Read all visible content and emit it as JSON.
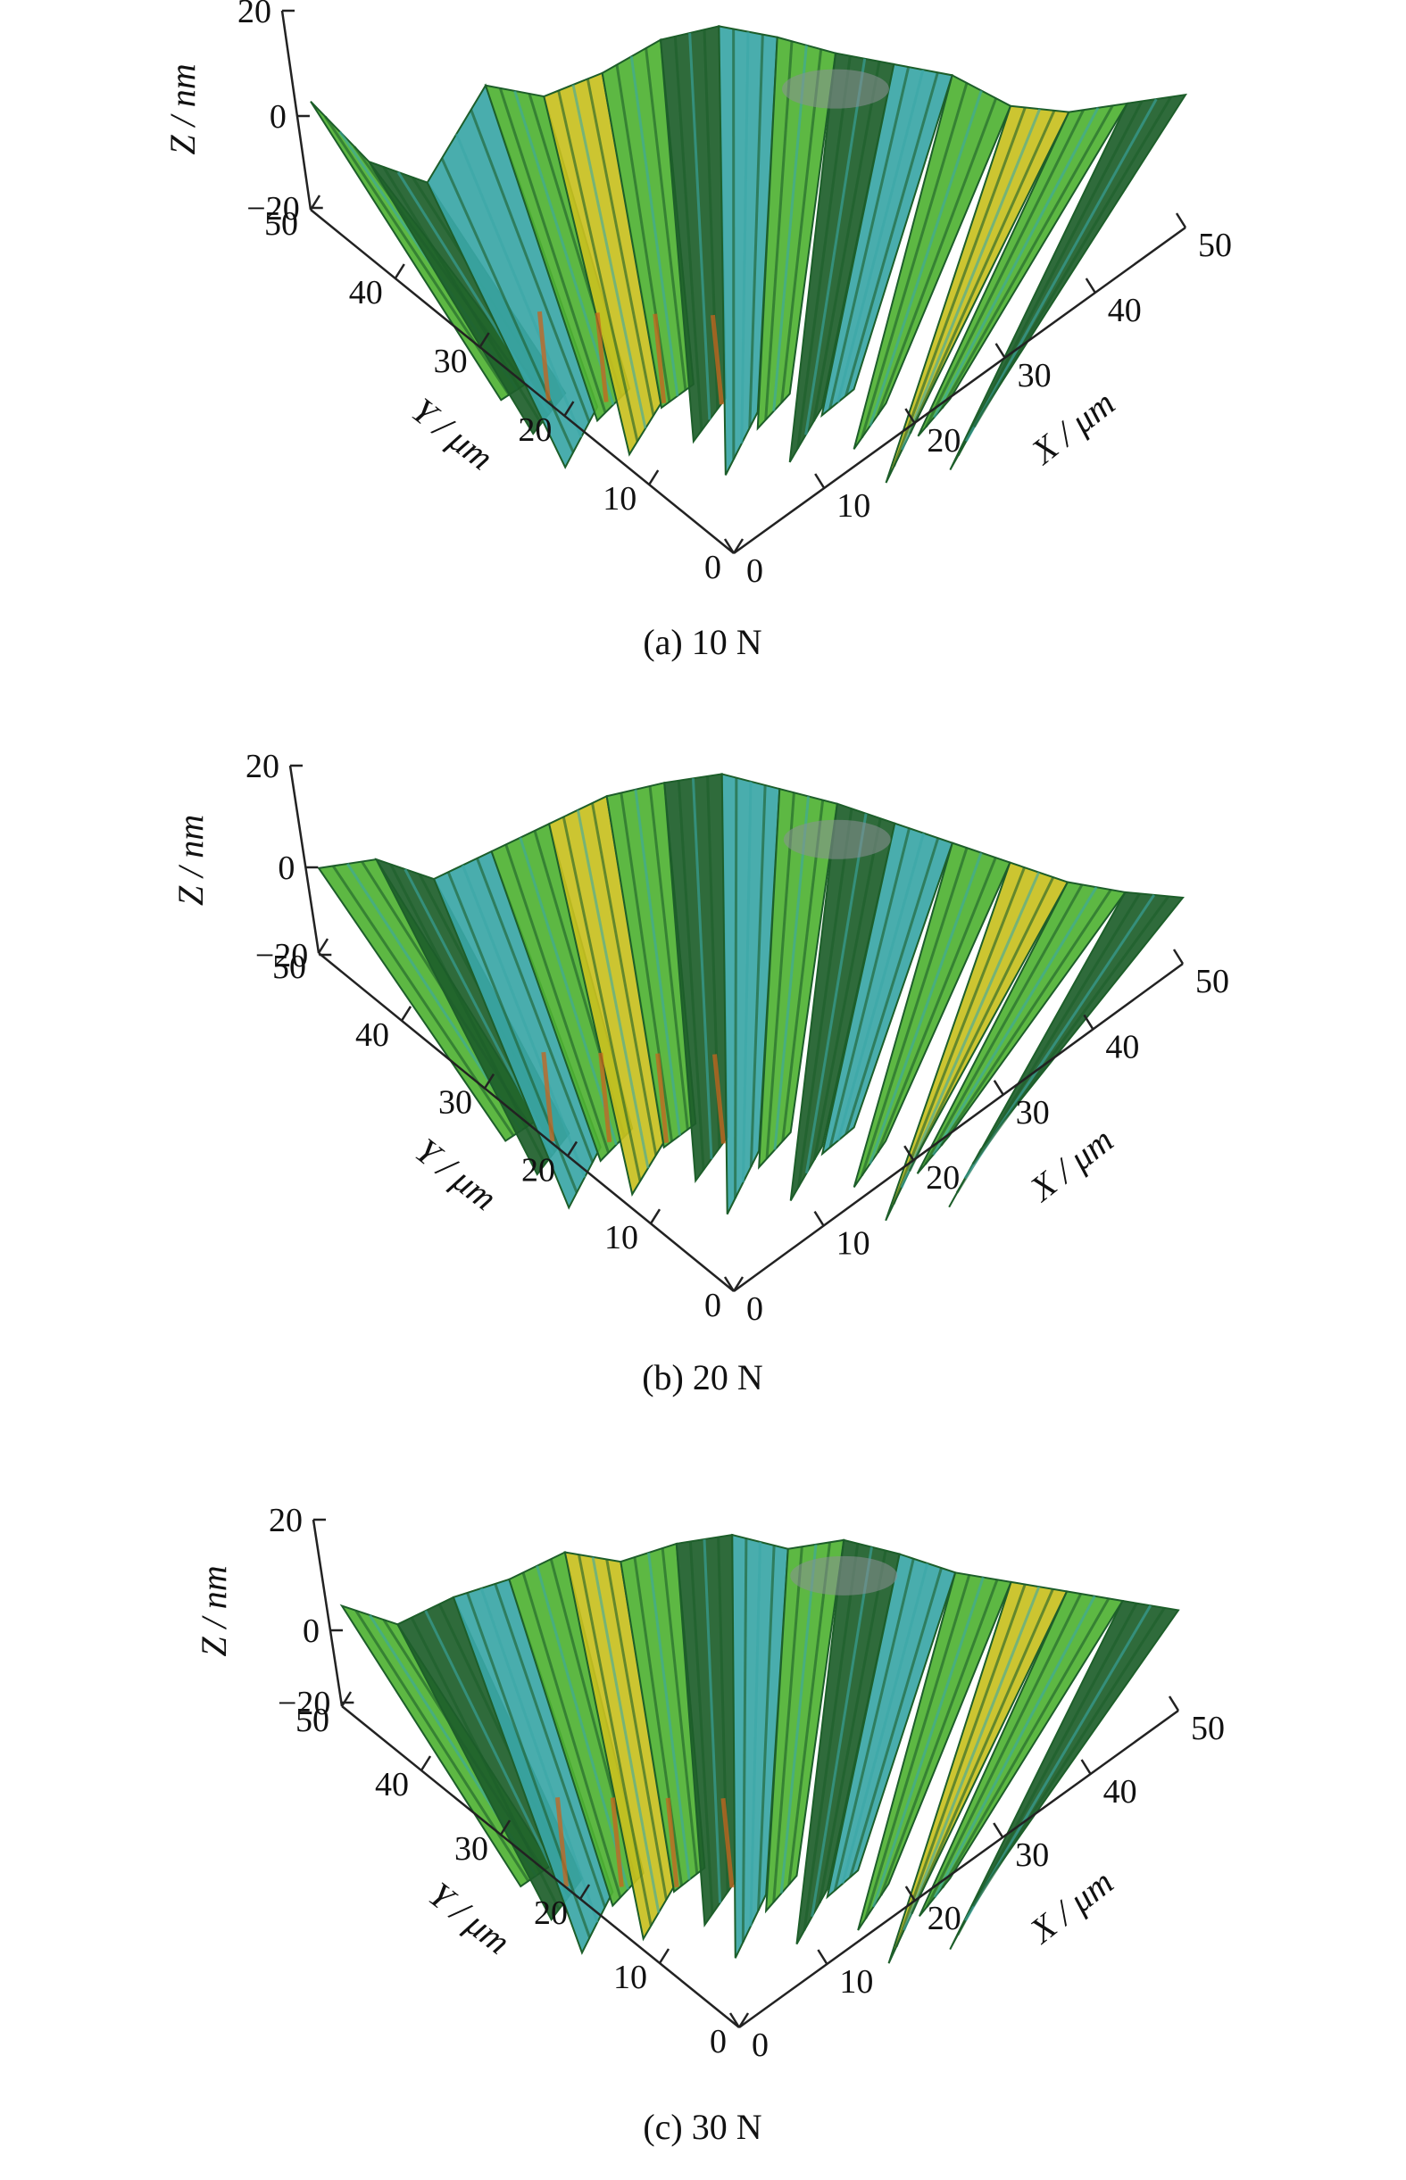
{
  "colors": {
    "axis": "#222222",
    "surface_green": "#4fb233",
    "surface_dark_green": "#1d5e2a",
    "surface_teal": "#3aa6a6",
    "surface_yellow": "#c8c020",
    "surface_orange": "#c8641e",
    "surface_gray": "#8a8f95"
  },
  "chart_data": [
    {
      "type": "surface",
      "caption": "(a) 10 N",
      "zlabel": "Z / nm",
      "ylabel": "Y / μm",
      "xlabel": "X / μm",
      "z_ticks": [
        "20",
        "0",
        "−20"
      ],
      "y_ticks": [
        "50",
        "40",
        "30",
        "20",
        "10",
        "0"
      ],
      "x_ticks": [
        "0",
        "10",
        "20",
        "30",
        "40",
        "50"
      ],
      "zlim": [
        -20,
        20
      ],
      "xlim": [
        0,
        50
      ],
      "ylim": [
        0,
        50
      ],
      "surface_z_profile": [
        2,
        -10,
        -14,
        6,
        4,
        9,
        16,
        19,
        17,
        14,
        12,
        10,
        4,
        3,
        5,
        7
      ]
    },
    {
      "type": "surface",
      "caption": "(b) 20 N",
      "zlabel": "Z / nm",
      "ylabel": "Y / μm",
      "xlabel": "X / μm",
      "z_ticks": [
        "20",
        "0",
        "−20"
      ],
      "y_ticks": [
        "50",
        "40",
        "30",
        "20",
        "10",
        "0"
      ],
      "x_ticks": [
        "0",
        "10",
        "20",
        "30",
        "40",
        "50"
      ],
      "zlim": [
        -20,
        20
      ],
      "xlim": [
        0,
        50
      ],
      "ylim": [
        0,
        50
      ],
      "surface_z_profile": [
        -2,
        0,
        -4,
        2,
        8,
        14,
        17,
        19,
        16,
        13,
        9,
        5,
        1,
        -3,
        -5,
        -6
      ]
    },
    {
      "type": "surface",
      "caption": "(c) 30 N",
      "zlabel": "Z / nm",
      "ylabel": "Y / μm",
      "xlabel": "X / μm",
      "z_ticks": [
        "20",
        "0",
        "−20"
      ],
      "y_ticks": [
        "50",
        "40",
        "30",
        "20",
        "10",
        "0"
      ],
      "x_ticks": [
        "0",
        "10",
        "20",
        "30",
        "40",
        "50"
      ],
      "zlim": [
        -20,
        20
      ],
      "xlim": [
        0,
        50
      ],
      "ylim": [
        0,
        50
      ],
      "surface_z_profile": [
        2,
        -2,
        4,
        8,
        14,
        12,
        16,
        18,
        15,
        17,
        14,
        10,
        8,
        6,
        4,
        2
      ]
    }
  ]
}
